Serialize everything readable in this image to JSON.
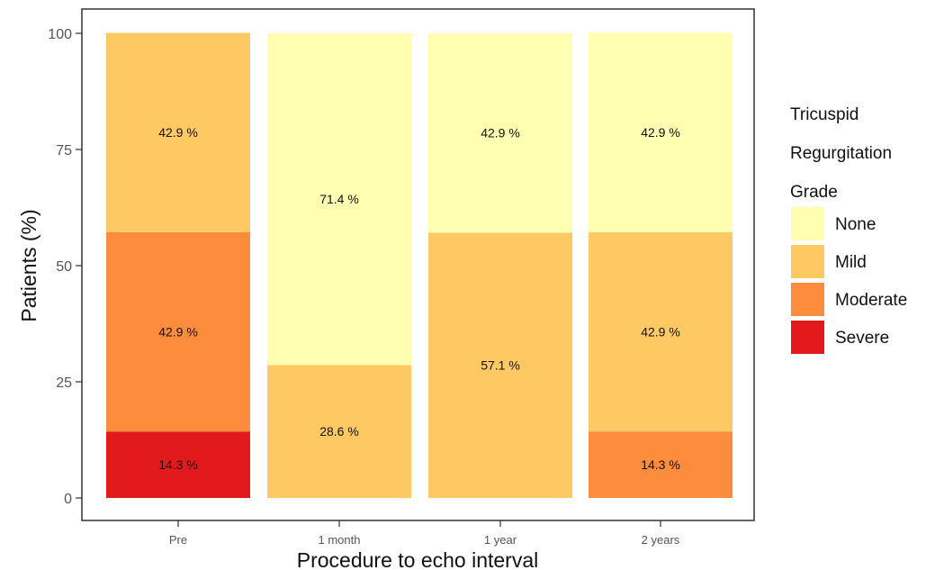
{
  "chart_data": {
    "type": "bar",
    "stacked": true,
    "xlabel": "Procedure to echo interval",
    "ylabel": "Patients (%)",
    "ylim": [
      0,
      100
    ],
    "yticks": [
      0,
      25,
      50,
      75,
      100
    ],
    "categories": [
      "Pre",
      "1 month",
      "1 year",
      "2 years"
    ],
    "series": [
      {
        "name": "Severe",
        "color": "#e31a1c",
        "values": [
          14.3,
          0,
          0,
          0
        ]
      },
      {
        "name": "Moderate",
        "color": "#fd8d3c",
        "values": [
          42.9,
          0,
          0,
          14.3
        ]
      },
      {
        "name": "Mild",
        "color": "#fec862",
        "values": [
          42.9,
          28.6,
          57.1,
          42.9
        ]
      },
      {
        "name": "None",
        "color": "#ffffb2",
        "values": [
          0,
          71.4,
          42.9,
          42.9
        ]
      }
    ],
    "data_labels": [
      [
        "14.3 %",
        "",
        "",
        ""
      ],
      [
        "42.9 %",
        "",
        "",
        "14.3 %"
      ],
      [
        "42.9 %",
        "28.6 %",
        "57.1 %",
        "42.9 %"
      ],
      [
        "",
        "71.4 %",
        "42.9 %",
        "42.9 %"
      ]
    ],
    "legend": {
      "title_lines": [
        "Tricuspid",
        "Regurgitation",
        "Grade"
      ],
      "position": "right",
      "order": [
        "None",
        "Mild",
        "Moderate",
        "Severe"
      ]
    },
    "grid": false
  }
}
